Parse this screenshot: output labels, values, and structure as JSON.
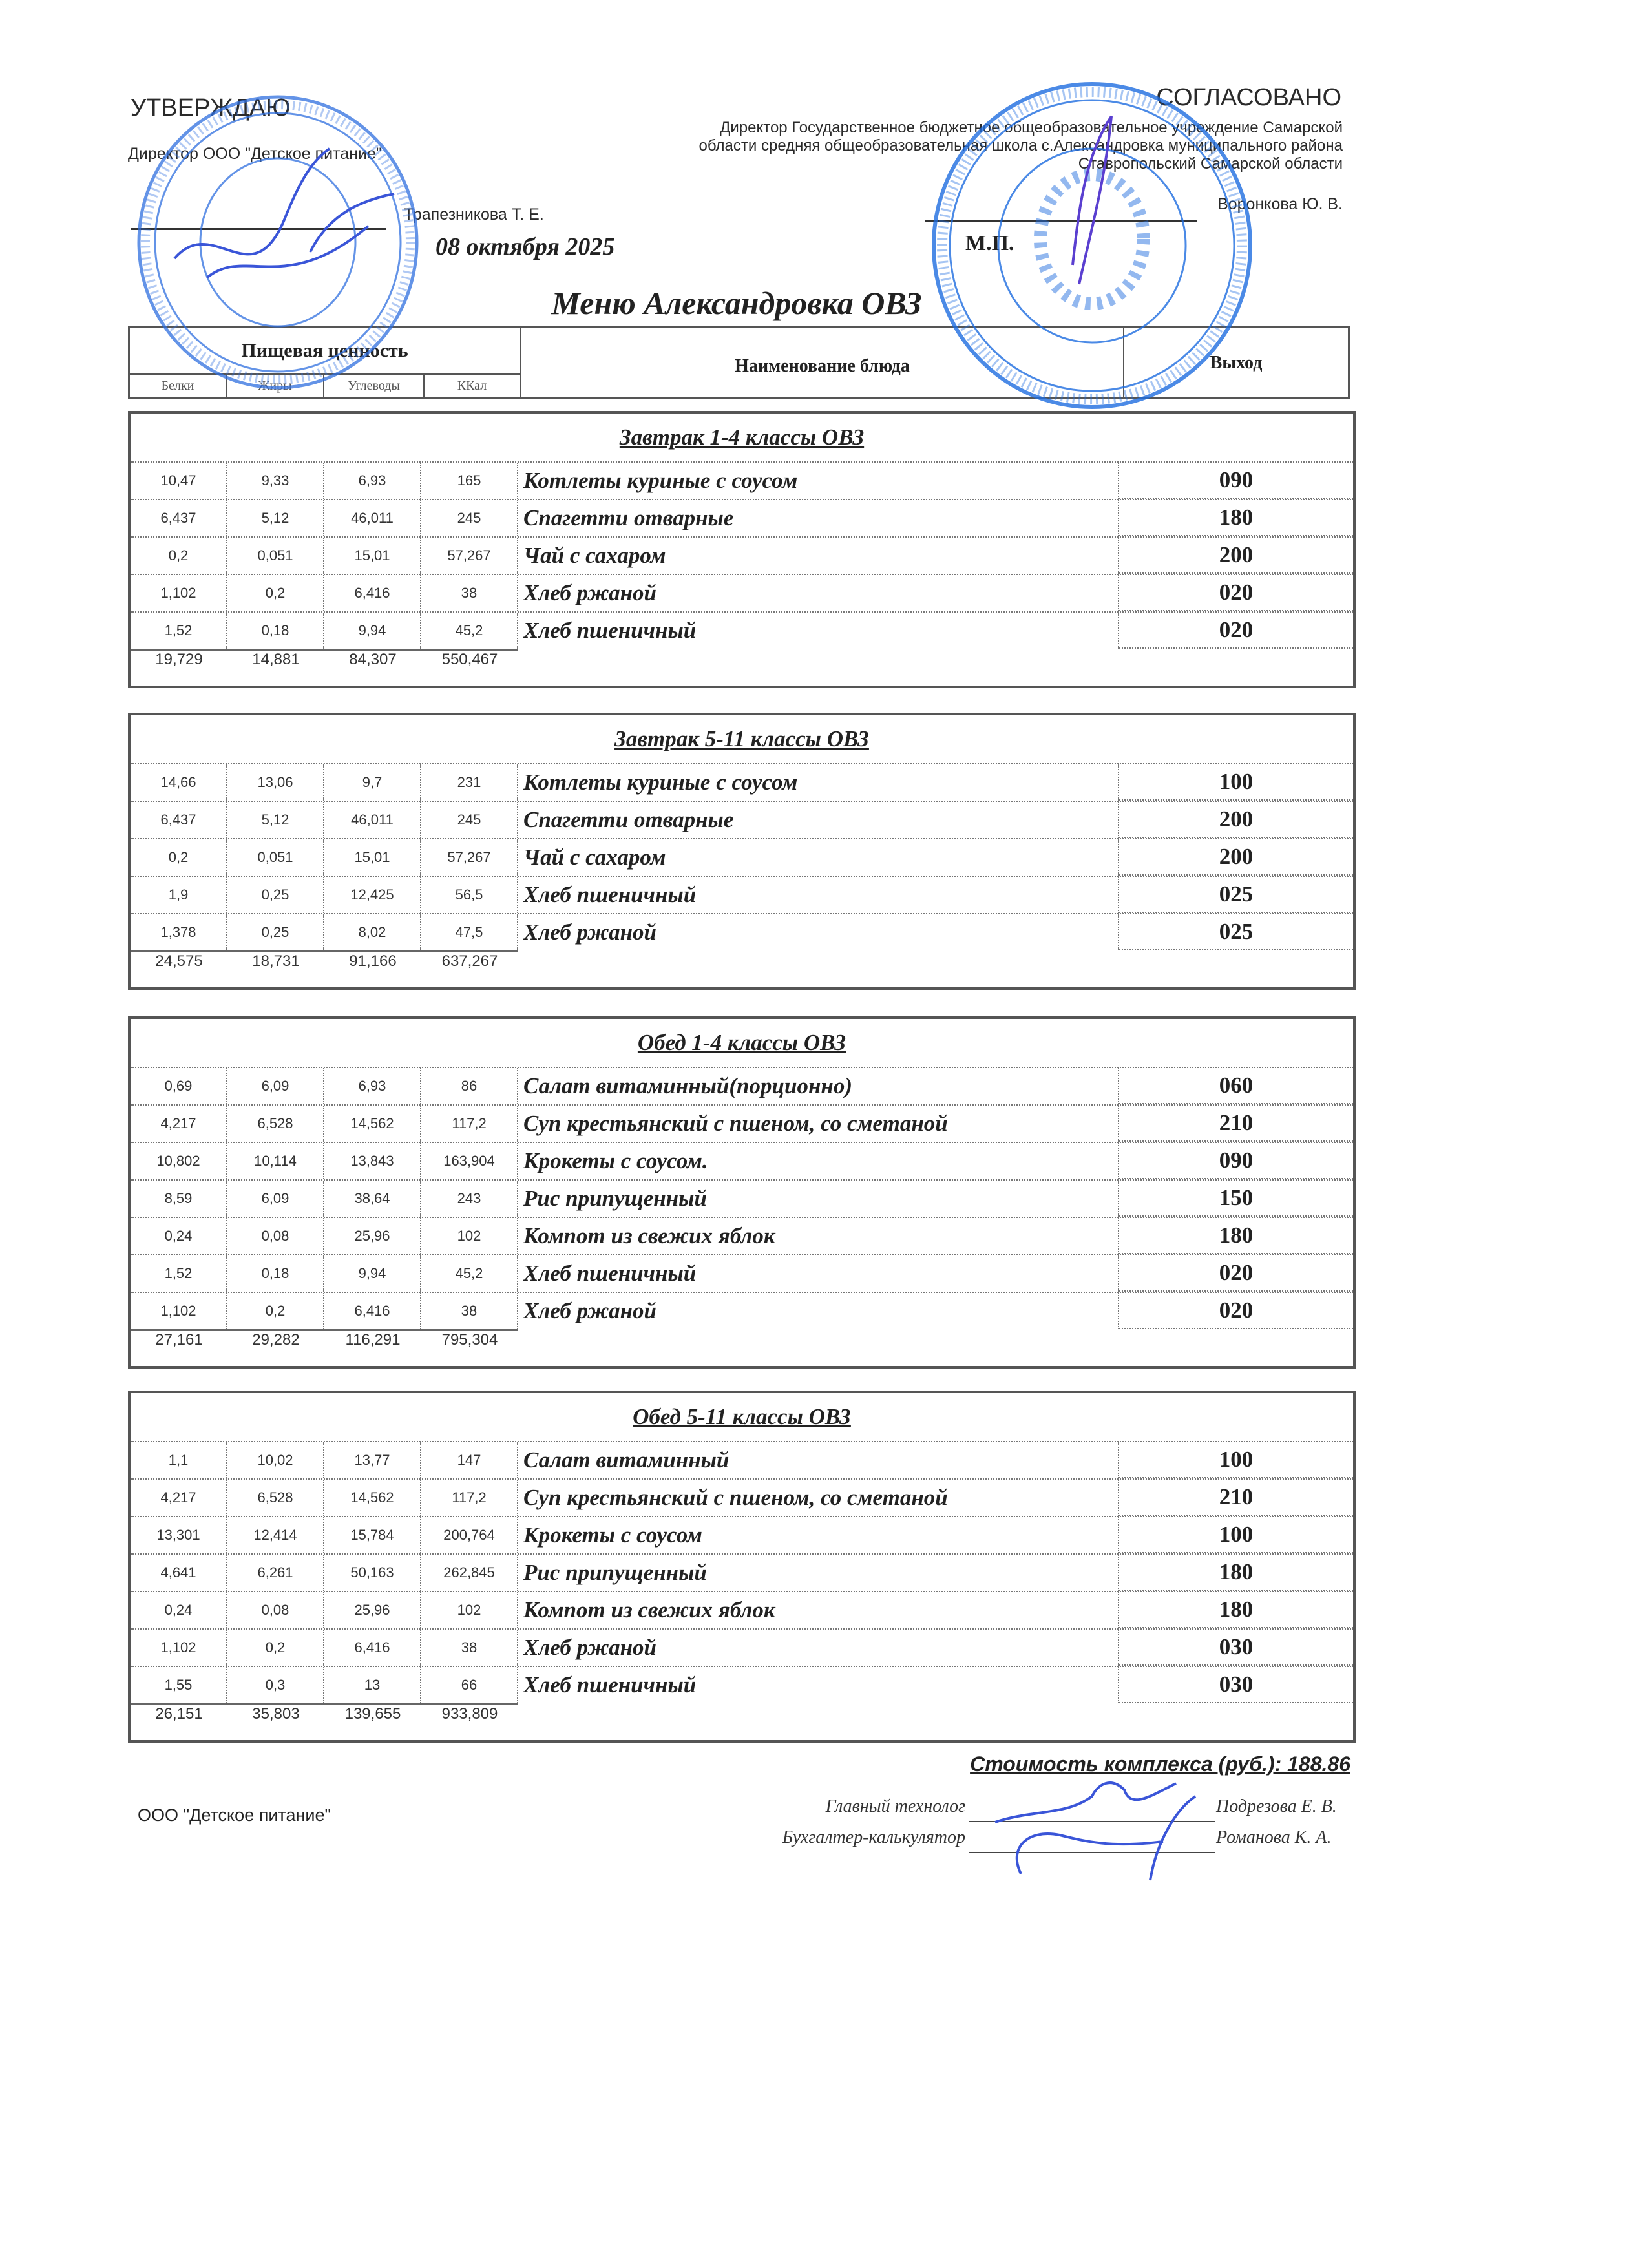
{
  "approve": {
    "heading": "УТВЕРЖДАЮ",
    "position": "Директор ООО \"Детское питание\"",
    "name": "Трапезникова Т. Е.",
    "date": "08 октября 2025"
  },
  "agree": {
    "heading": "СОГЛАСОВАНО",
    "position_lines": [
      "Директор Государственное бюджетное общеобразовательное учреждение Самарской",
      "области средняя общеобразовательная школа с.Александровка муниципального района",
      "Ставропольский Самарской области"
    ],
    "name": "Воронкова Ю. В.",
    "seal_place": "М.П."
  },
  "title": "Меню Александровка ОВЗ",
  "header": {
    "nutrition": "Пищевая ценность",
    "protein": "Белки",
    "fat": "Жиры",
    "carbs": "Углеводы",
    "kcal": "ККал",
    "dish": "Наименование блюда",
    "output": "Выход"
  },
  "sections": [
    {
      "title": "Завтрак 1-4 классы ОВЗ",
      "rows": [
        {
          "b": "10,47",
          "j": "9,33",
          "u": "6,93",
          "k": "165",
          "name": "Котлеты  куриные с соусом",
          "out": "090"
        },
        {
          "b": "6,437",
          "j": "5,12",
          "u": "46,011",
          "k": "245",
          "name": "Спагетти отварные",
          "out": "180"
        },
        {
          "b": "0,2",
          "j": "0,051",
          "u": "15,01",
          "k": "57,267",
          "name": "Чай с сахаром",
          "out": "200"
        },
        {
          "b": "1,102",
          "j": "0,2",
          "u": "6,416",
          "k": "38",
          "name": "Хлеб ржаной",
          "out": "020"
        },
        {
          "b": "1,52",
          "j": "0,18",
          "u": "9,94",
          "k": "45,2",
          "name": "Хлеб пшеничный",
          "out": "020"
        }
      ],
      "totals": [
        "19,729",
        "14,881",
        "84,307",
        "550,467"
      ]
    },
    {
      "title": "Завтрак 5-11 классы ОВЗ",
      "rows": [
        {
          "b": "14,66",
          "j": "13,06",
          "u": "9,7",
          "k": "231",
          "name": "Котлеты  куриные с соусом",
          "out": "100"
        },
        {
          "b": "6,437",
          "j": "5,12",
          "u": "46,011",
          "k": "245",
          "name": "Спагетти отварные",
          "out": "200"
        },
        {
          "b": "0,2",
          "j": "0,051",
          "u": "15,01",
          "k": "57,267",
          "name": "Чай с сахаром",
          "out": "200"
        },
        {
          "b": "1,9",
          "j": "0,25",
          "u": "12,425",
          "k": "56,5",
          "name": "Хлеб пшеничный",
          "out": "025"
        },
        {
          "b": "1,378",
          "j": "0,25",
          "u": "8,02",
          "k": "47,5",
          "name": "Хлеб ржаной",
          "out": "025"
        }
      ],
      "totals": [
        "24,575",
        "18,731",
        "91,166",
        "637,267"
      ]
    },
    {
      "title": "Обед 1-4 классы ОВЗ",
      "rows": [
        {
          "b": "0,69",
          "j": "6,09",
          "u": "6,93",
          "k": "86",
          "name": "Салат витаминный(порционно)",
          "out": "060"
        },
        {
          "b": "4,217",
          "j": "6,528",
          "u": "14,562",
          "k": "117,2",
          "name": "Суп крестьянский с пшеном, со сметаной",
          "out": "210"
        },
        {
          "b": "10,802",
          "j": "10,114",
          "u": "13,843",
          "k": "163,904",
          "name": "Крокеты с соусом.",
          "out": "090"
        },
        {
          "b": "8,59",
          "j": "6,09",
          "u": "38,64",
          "k": "243",
          "name": "Рис припущенный",
          "out": "150"
        },
        {
          "b": "0,24",
          "j": "0,08",
          "u": "25,96",
          "k": "102",
          "name": "Компот из свежих яблок",
          "out": "180"
        },
        {
          "b": "1,52",
          "j": "0,18",
          "u": "9,94",
          "k": "45,2",
          "name": "Хлеб пшеничный",
          "out": "020"
        },
        {
          "b": "1,102",
          "j": "0,2",
          "u": "6,416",
          "k": "38",
          "name": "Хлеб ржаной",
          "out": "020"
        }
      ],
      "totals": [
        "27,161",
        "29,282",
        "116,291",
        "795,304"
      ]
    },
    {
      "title": "Обед 5-11 классы ОВЗ",
      "rows": [
        {
          "b": "1,1",
          "j": "10,02",
          "u": "13,77",
          "k": "147",
          "name": "Салат витаминный",
          "out": "100"
        },
        {
          "b": "4,217",
          "j": "6,528",
          "u": "14,562",
          "k": "117,2",
          "name": "Суп крестьянский с пшеном, со сметаной",
          "out": "210"
        },
        {
          "b": "13,301",
          "j": "12,414",
          "u": "15,784",
          "k": "200,764",
          "name": "Крокеты с соусом",
          "out": "100"
        },
        {
          "b": "4,641",
          "j": "6,261",
          "u": "50,163",
          "k": "262,845",
          "name": "Рис припущенный",
          "out": "180"
        },
        {
          "b": "0,24",
          "j": "0,08",
          "u": "25,96",
          "k": "102",
          "name": "Компот из свежих яблок",
          "out": "180"
        },
        {
          "b": "1,102",
          "j": "0,2",
          "u": "6,416",
          "k": "38",
          "name": "Хлеб ржаной",
          "out": "030"
        },
        {
          "b": "1,55",
          "j": "0,3",
          "u": "13",
          "k": "66",
          "name": "Хлеб пшеничный",
          "out": "030"
        }
      ],
      "totals": [
        "26,151",
        "35,803",
        "139,655",
        "933,809"
      ]
    }
  ],
  "footer": {
    "cost": "Стоимость комплекса (руб.): 188.86",
    "org": "ООО \"Детское питание\"",
    "tech_role": "Главный технолог",
    "tech_name": "Подрезова Е. В.",
    "acc_role": "Бухгалтер-калькулятор",
    "acc_name": "Романова К. А."
  },
  "colors": {
    "stamp_ink": "#2f6fe0",
    "signature_ink": "#3a55d8",
    "text": "#222222"
  }
}
